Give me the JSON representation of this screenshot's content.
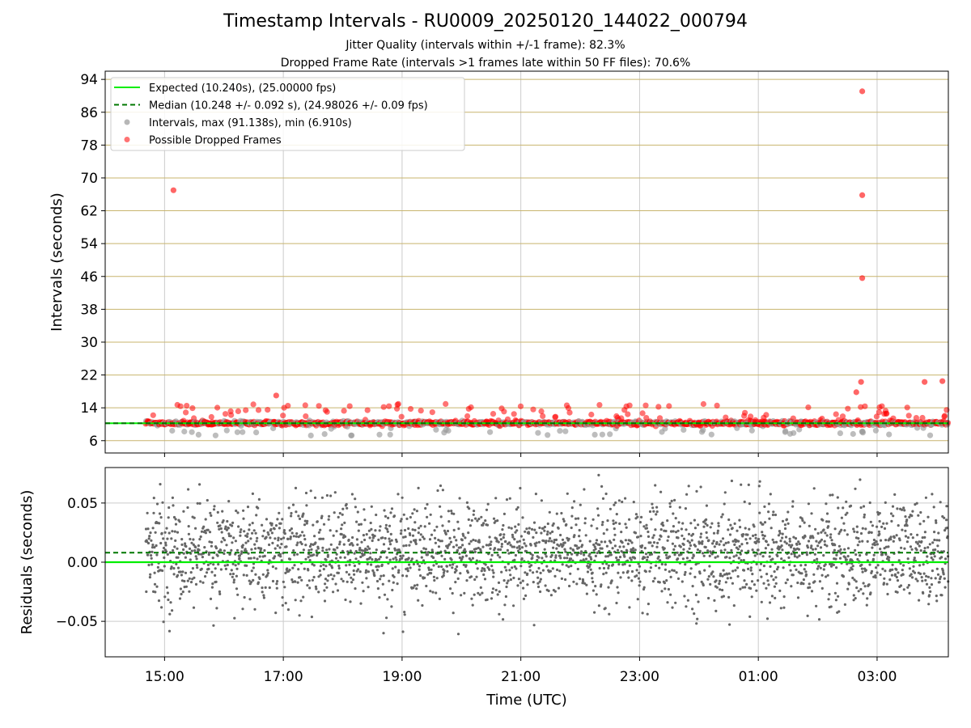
{
  "title": "Timestamp Intervals - RU0009_20250120_144022_000794",
  "subtitle_line1": "Jitter Quality (intervals within +/-1 frame): 82.3%",
  "subtitle_line2": "Dropped Frame Rate (intervals >1 frames late within 50 FF files): 70.6%",
  "colors": {
    "expected": "#00ee00",
    "median": "#007700",
    "intervals": "#999999",
    "dropped": "#ff0000",
    "residuals": "#666666",
    "hgrid_top": "#c8b46e",
    "grid": "#cccccc"
  },
  "chart_data": [
    {
      "type": "scatter",
      "panel": "intervals",
      "ylabel": "Intervals (seconds)",
      "ylim": [
        3.0,
        96.0
      ],
      "yticks": [
        "6",
        "14",
        "22",
        "30",
        "38",
        "46",
        "54",
        "62",
        "70",
        "78",
        "86",
        "94"
      ],
      "ytick_values": [
        6,
        14,
        22,
        30,
        38,
        46,
        54,
        62,
        70,
        78,
        86,
        94
      ],
      "xlim_hours": [
        14.0,
        28.2
      ],
      "xticks": [
        "15:00",
        "17:00",
        "19:00",
        "21:00",
        "23:00",
        "01:00",
        "03:00"
      ],
      "xtick_hours": [
        15,
        17,
        19,
        21,
        23,
        25,
        27
      ],
      "legend_position": "top-left",
      "legend": [
        "Expected (10.240s), (25.00000 fps)",
        "Median (10.248 +/- 0.092 s), (24.98026 +/- 0.09 fps)",
        "Intervals, max (91.138s), min (6.910s)",
        "Possible Dropped Frames"
      ],
      "expected_interval": 10.24,
      "median_interval": 10.248,
      "interval_range": [
        6.91,
        91.138
      ],
      "notable_dropped_frames": [
        {
          "hour": 15.15,
          "interval": 67.0
        },
        {
          "hour": 26.75,
          "interval": 91.1
        },
        {
          "hour": 26.75,
          "interval": 65.8
        },
        {
          "hour": 26.75,
          "interval": 45.6
        },
        {
          "hour": 26.73,
          "interval": 20.3
        },
        {
          "hour": 26.65,
          "interval": 17.8
        },
        {
          "hour": 16.88,
          "interval": 17.0
        },
        {
          "hour": 28.1,
          "interval": 20.5
        },
        {
          "hour": 27.8,
          "interval": 20.3
        }
      ]
    },
    {
      "type": "scatter",
      "panel": "residuals",
      "xlabel": "Time (UTC)",
      "ylabel": "Residuals (seconds)",
      "ylim": [
        -0.08,
        0.08
      ],
      "yticks": [
        "0.05",
        "0.00",
        "−0.05"
      ],
      "ytick_values": [
        0.05,
        0.0,
        -0.05
      ],
      "expected_residual": 0.0,
      "median_residual": 0.008,
      "xlim_hours": [
        14.0,
        28.2
      ]
    }
  ]
}
